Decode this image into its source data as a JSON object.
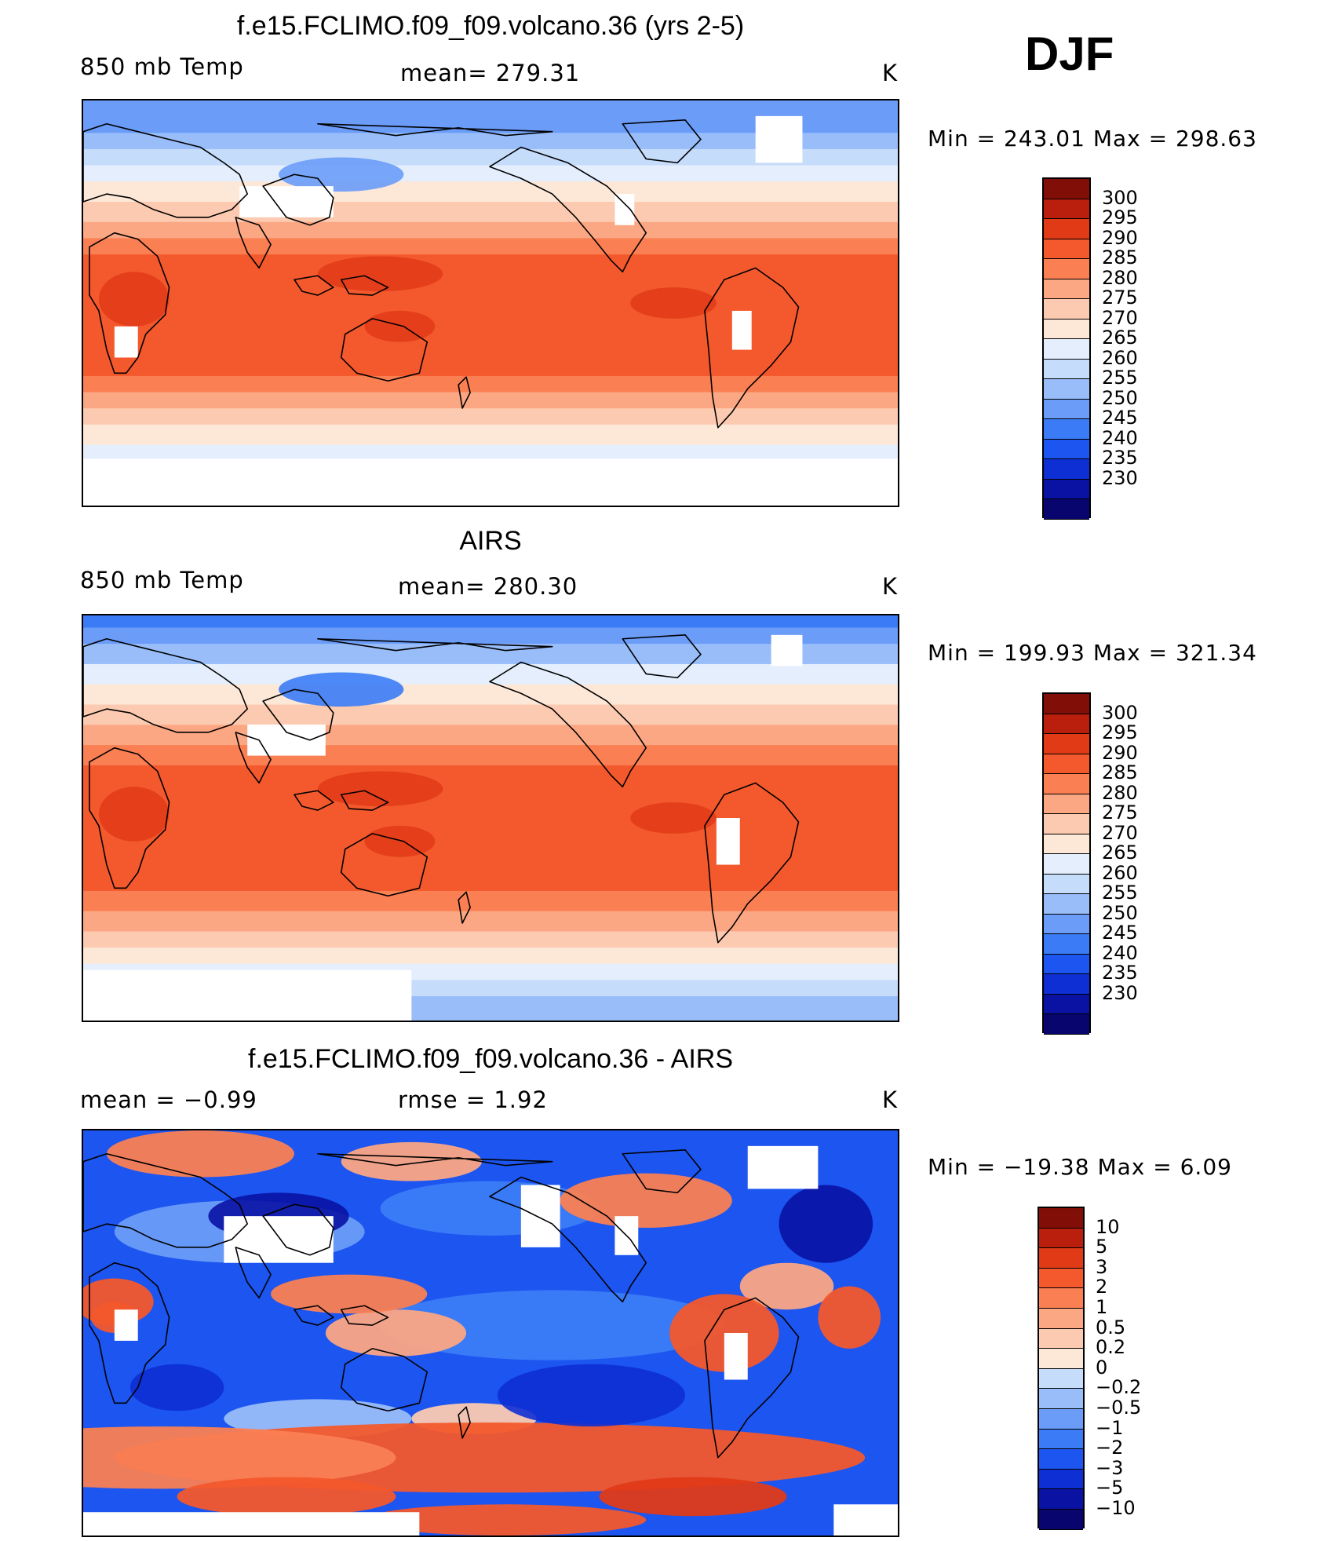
{
  "season": "DJF",
  "colors": {
    "temp_palette": [
      "#08066e",
      "#0a12a4",
      "#0e2fd4",
      "#1c55f0",
      "#3b7cf6",
      "#6a9cf8",
      "#98bdf9",
      "#c6dcfb",
      "#e4eefc",
      "#fde8d8",
      "#fccab0",
      "#fba783",
      "#fa7f53",
      "#f3592c",
      "#e03a17",
      "#b91f0c",
      "#820f07"
    ],
    "diff_palette": [
      "#08066e",
      "#0a12a4",
      "#0e2fd4",
      "#1c55f0",
      "#3b7cf6",
      "#6a9cf8",
      "#98bdf9",
      "#c6dcfb",
      "#fde8d8",
      "#fccab0",
      "#fba783",
      "#fa7f53",
      "#f3592c",
      "#e03a17",
      "#b91f0c",
      "#820f07"
    ],
    "coast": "#000000"
  },
  "panels": [
    {
      "title": "f.e15.FCLIMO.f09_f09.volcano.36 (yrs 2-5)",
      "left_label": "850 mb Temp",
      "center_label": "mean=  279.31",
      "units": "K",
      "minmax": "Min  =  243.01  Max  =  298.63",
      "kind": "model",
      "colorbar": {
        "labels": [
          "300",
          "295",
          "290",
          "285",
          "280",
          "275",
          "270",
          "265",
          "260",
          "255",
          "250",
          "245",
          "240",
          "235",
          "230"
        ]
      }
    },
    {
      "title": "AIRS",
      "left_label": "850 mb Temp",
      "center_label": "mean=  280.30",
      "units": "K",
      "minmax": "Min  =  199.93  Max  =  321.34",
      "kind": "obs",
      "colorbar": {
        "labels": [
          "300",
          "295",
          "290",
          "285",
          "280",
          "275",
          "270",
          "265",
          "260",
          "255",
          "250",
          "245",
          "240",
          "235",
          "230"
        ]
      }
    },
    {
      "title": "f.e15.FCLIMO.f09_f09.volcano.36 - AIRS",
      "left_label": "mean  =    −0.99",
      "center_label": "rmse  =     1.92",
      "units": "K",
      "minmax": "Min  =  −19.38  Max  =      6.09",
      "kind": "diff",
      "colorbar": {
        "labels": [
          "10",
          "5",
          "3",
          "2",
          "1",
          "0.5",
          "0.2",
          "0",
          "−0.2",
          "−0.5",
          "−1",
          "−2",
          "−3",
          "−5",
          "−10"
        ]
      }
    }
  ]
}
